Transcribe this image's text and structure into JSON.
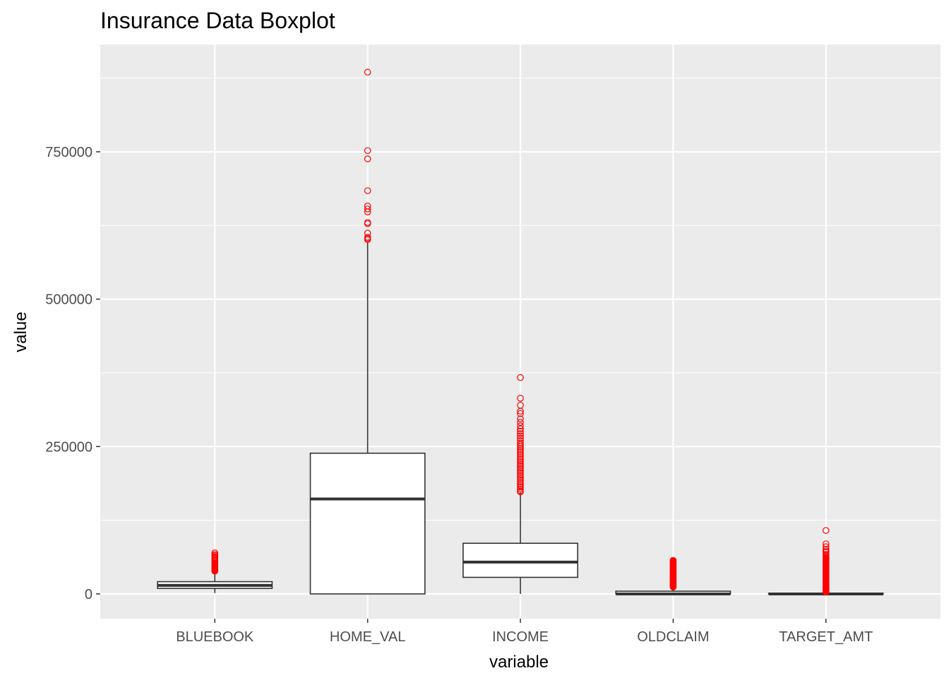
{
  "chart_data": {
    "type": "boxplot",
    "title": "Insurance Data Boxplot",
    "xlabel": "variable",
    "ylabel": "value",
    "ylim": [
      -42000,
      932000
    ],
    "yticks": [
      0,
      250000,
      500000,
      750000
    ],
    "ytick_labels": [
      "0",
      "250000",
      "500000",
      "750000"
    ],
    "grid": true,
    "outlier_color": "#ff0000",
    "panel_color": "#ebebeb",
    "categories": [
      "BLUEBOOK",
      "HOME_VAL",
      "INCOME",
      "OLDCLAIM",
      "TARGET_AMT"
    ],
    "boxes": [
      {
        "name": "BLUEBOOK",
        "whisker_low": 1500,
        "q1": 9300,
        "median": 14400,
        "q3": 20800,
        "whisker_high": 38000,
        "outliers": [
          38600,
          39500,
          40500,
          41500,
          42300,
          43200,
          44100,
          45000,
          46000,
          47000,
          48000,
          49500,
          51000,
          53000,
          56000,
          58000,
          60000,
          61500,
          63000,
          65000,
          67000,
          69700
        ]
      },
      {
        "name": "HOME_VAL",
        "whisker_low": 0,
        "q1": 0,
        "median": 161000,
        "q3": 238700,
        "whisker_high": 597000,
        "outliers": [
          601000,
          603000,
          605000,
          612000,
          628000,
          630000,
          648000,
          653000,
          658000,
          684000,
          738000,
          752000,
          885000
        ]
      },
      {
        "name": "INCOME",
        "whisker_low": 0,
        "q1": 28100,
        "median": 54000,
        "q3": 85900,
        "whisker_high": 172000,
        "outliers": [
          173000,
          175000,
          178000,
          181000,
          184000,
          187000,
          190000,
          193000,
          196000,
          199000,
          202000,
          205000,
          208000,
          211000,
          214000,
          217000,
          220000,
          223000,
          226000,
          229000,
          232000,
          235000,
          238000,
          241000,
          244000,
          247000,
          250000,
          253000,
          256000,
          260000,
          264000,
          268000,
          272000,
          276000,
          280000,
          285000,
          291000,
          297000,
          306000,
          310000,
          320000,
          332000,
          367000
        ]
      },
      {
        "name": "OLDCLAIM",
        "whisker_low": 0,
        "q1": 0,
        "median": 0,
        "q3": 4600,
        "whisker_high": 11400,
        "outliers": [
          11600,
          12500,
          13500,
          14500,
          15500,
          16500,
          17500,
          18500,
          19500,
          20500,
          21500,
          22500,
          23500,
          24500,
          25500,
          26500,
          27500,
          28500,
          29500,
          30500,
          31500,
          32500,
          33500,
          34500,
          35500,
          36500,
          37500,
          38500,
          39500,
          40500,
          41500,
          42500,
          43500,
          44500,
          45500,
          46500,
          47500,
          48500,
          49500,
          50500,
          51500,
          52500,
          53500,
          54500,
          55500,
          57000
        ]
      },
      {
        "name": "TARGET_AMT",
        "whisker_low": 0,
        "q1": 0,
        "median": 0,
        "q3": 1000,
        "whisker_high": 2600,
        "outliers": [
          3000,
          4000,
          5000,
          6000,
          7000,
          8000,
          9000,
          10000,
          11000,
          12000,
          13000,
          14000,
          15000,
          16000,
          17000,
          18000,
          19000,
          20000,
          21000,
          22000,
          23000,
          24000,
          25000,
          26000,
          27000,
          28000,
          29000,
          30000,
          31000,
          32000,
          33000,
          34000,
          35000,
          36000,
          37000,
          38000,
          39000,
          40000,
          41000,
          42000,
          43000,
          44000,
          45000,
          46000,
          47000,
          48000,
          49000,
          50000,
          51000,
          52000,
          53000,
          54000,
          55000,
          56000,
          57000,
          58000,
          59000,
          60000,
          61000,
          63000,
          65000,
          67000,
          71000,
          73000,
          76000,
          80000,
          85000,
          107600
        ]
      }
    ]
  }
}
